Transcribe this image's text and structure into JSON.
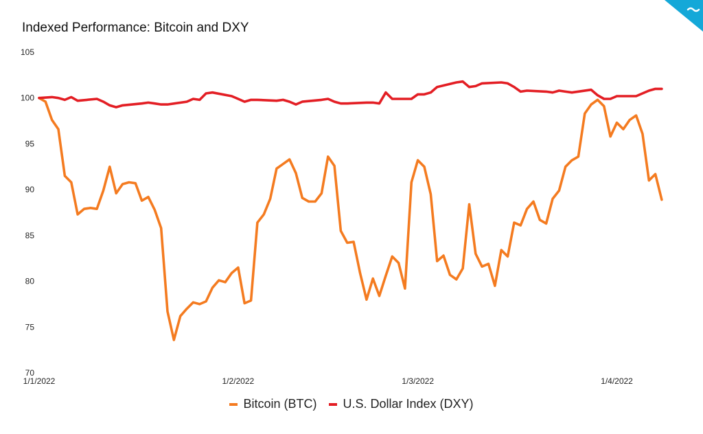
{
  "chart_data": {
    "type": "line",
    "title": "Indexed Performance: Bitcoin and DXY",
    "xlabel": "",
    "ylabel": "",
    "ylim": [
      70,
      105
    ],
    "yticks": [
      70,
      75,
      80,
      85,
      90,
      95,
      100,
      105
    ],
    "xlim": [
      "2022-01-01",
      "2022-04-11"
    ],
    "xticks": [
      {
        "date": "2022-01-01",
        "label": "1/1/2022"
      },
      {
        "date": "2022-02-01",
        "label": "1/2/2022"
      },
      {
        "date": "2022-03-01",
        "label": "1/3/2022"
      },
      {
        "date": "2022-04-01",
        "label": "1/4/2022"
      }
    ],
    "grid": false,
    "legend_position": "bottom",
    "series": [
      {
        "name": "Bitcoin (BTC)",
        "color": "#f47b20",
        "points": [
          [
            "2022-01-01",
            100.0
          ],
          [
            "2022-01-02",
            99.6
          ],
          [
            "2022-01-03",
            97.6
          ],
          [
            "2022-01-04",
            96.6
          ],
          [
            "2022-01-05",
            91.5
          ],
          [
            "2022-01-06",
            90.8
          ],
          [
            "2022-01-07",
            87.3
          ],
          [
            "2022-01-08",
            87.9
          ],
          [
            "2022-01-09",
            88.0
          ],
          [
            "2022-01-10",
            87.9
          ],
          [
            "2022-01-11",
            89.9
          ],
          [
            "2022-01-12",
            92.5
          ],
          [
            "2022-01-13",
            89.6
          ],
          [
            "2022-01-14",
            90.6
          ],
          [
            "2022-01-15",
            90.8
          ],
          [
            "2022-01-16",
            90.7
          ],
          [
            "2022-01-17",
            88.8
          ],
          [
            "2022-01-18",
            89.2
          ],
          [
            "2022-01-19",
            87.8
          ],
          [
            "2022-01-20",
            85.8
          ],
          [
            "2022-01-21",
            76.7
          ],
          [
            "2022-01-22",
            73.6
          ],
          [
            "2022-01-23",
            76.2
          ],
          [
            "2022-01-24",
            77.0
          ],
          [
            "2022-01-25",
            77.7
          ],
          [
            "2022-01-26",
            77.5
          ],
          [
            "2022-01-27",
            77.8
          ],
          [
            "2022-01-28",
            79.3
          ],
          [
            "2022-01-29",
            80.1
          ],
          [
            "2022-01-30",
            79.9
          ],
          [
            "2022-01-31",
            80.9
          ],
          [
            "2022-02-01",
            81.5
          ],
          [
            "2022-02-02",
            77.6
          ],
          [
            "2022-02-03",
            77.9
          ],
          [
            "2022-02-04",
            86.4
          ],
          [
            "2022-02-05",
            87.3
          ],
          [
            "2022-02-06",
            89.0
          ],
          [
            "2022-02-07",
            92.3
          ],
          [
            "2022-02-08",
            92.8
          ],
          [
            "2022-02-09",
            93.3
          ],
          [
            "2022-02-10",
            91.8
          ],
          [
            "2022-02-11",
            89.1
          ],
          [
            "2022-02-12",
            88.7
          ],
          [
            "2022-02-13",
            88.7
          ],
          [
            "2022-02-14",
            89.6
          ],
          [
            "2022-02-15",
            93.6
          ],
          [
            "2022-02-16",
            92.6
          ],
          [
            "2022-02-17",
            85.5
          ],
          [
            "2022-02-18",
            84.2
          ],
          [
            "2022-02-19",
            84.3
          ],
          [
            "2022-02-20",
            80.9
          ],
          [
            "2022-02-21",
            78.0
          ],
          [
            "2022-02-22",
            80.3
          ],
          [
            "2022-02-23",
            78.4
          ],
          [
            "2022-02-24",
            80.6
          ],
          [
            "2022-02-25",
            82.7
          ],
          [
            "2022-02-26",
            82.0
          ],
          [
            "2022-02-27",
            79.2
          ],
          [
            "2022-02-28",
            90.8
          ],
          [
            "2022-03-01",
            93.2
          ],
          [
            "2022-03-02",
            92.5
          ],
          [
            "2022-03-03",
            89.5
          ],
          [
            "2022-03-04",
            82.2
          ],
          [
            "2022-03-05",
            82.8
          ],
          [
            "2022-03-06",
            80.7
          ],
          [
            "2022-03-07",
            80.2
          ],
          [
            "2022-03-08",
            81.4
          ],
          [
            "2022-03-09",
            88.4
          ],
          [
            "2022-03-10",
            83.0
          ],
          [
            "2022-03-11",
            81.6
          ],
          [
            "2022-03-12",
            81.9
          ],
          [
            "2022-03-13",
            79.5
          ],
          [
            "2022-03-14",
            83.4
          ],
          [
            "2022-03-15",
            82.7
          ],
          [
            "2022-03-16",
            86.4
          ],
          [
            "2022-03-17",
            86.1
          ],
          [
            "2022-03-18",
            87.9
          ],
          [
            "2022-03-19",
            88.7
          ],
          [
            "2022-03-20",
            86.7
          ],
          [
            "2022-03-21",
            86.3
          ],
          [
            "2022-03-22",
            89.0
          ],
          [
            "2022-03-23",
            89.9
          ],
          [
            "2022-03-24",
            92.5
          ],
          [
            "2022-03-25",
            93.2
          ],
          [
            "2022-03-26",
            93.6
          ],
          [
            "2022-03-27",
            98.3
          ],
          [
            "2022-03-28",
            99.3
          ],
          [
            "2022-03-29",
            99.8
          ],
          [
            "2022-03-30",
            99.1
          ],
          [
            "2022-03-31",
            95.8
          ],
          [
            "2022-04-01",
            97.3
          ],
          [
            "2022-04-02",
            96.6
          ],
          [
            "2022-04-03",
            97.6
          ],
          [
            "2022-04-04",
            98.1
          ],
          [
            "2022-04-05",
            96.1
          ],
          [
            "2022-04-06",
            91.0
          ],
          [
            "2022-04-07",
            91.7
          ],
          [
            "2022-04-08",
            88.9
          ]
        ]
      },
      {
        "name": "U.S. Dollar Index (DXY)",
        "color": "#e31e24",
        "points": [
          [
            "2022-01-01",
            100.0
          ],
          [
            "2022-01-03",
            100.1
          ],
          [
            "2022-01-04",
            100.0
          ],
          [
            "2022-01-05",
            99.8
          ],
          [
            "2022-01-06",
            100.1
          ],
          [
            "2022-01-07",
            99.7
          ],
          [
            "2022-01-10",
            99.9
          ],
          [
            "2022-01-11",
            99.6
          ],
          [
            "2022-01-12",
            99.2
          ],
          [
            "2022-01-13",
            99.0
          ],
          [
            "2022-01-14",
            99.2
          ],
          [
            "2022-01-17",
            99.4
          ],
          [
            "2022-01-18",
            99.5
          ],
          [
            "2022-01-19",
            99.4
          ],
          [
            "2022-01-20",
            99.3
          ],
          [
            "2022-01-21",
            99.3
          ],
          [
            "2022-01-24",
            99.6
          ],
          [
            "2022-01-25",
            99.9
          ],
          [
            "2022-01-26",
            99.8
          ],
          [
            "2022-01-27",
            100.5
          ],
          [
            "2022-01-28",
            100.6
          ],
          [
            "2022-01-31",
            100.2
          ],
          [
            "2022-02-01",
            99.9
          ],
          [
            "2022-02-02",
            99.6
          ],
          [
            "2022-02-03",
            99.8
          ],
          [
            "2022-02-04",
            99.8
          ],
          [
            "2022-02-07",
            99.7
          ],
          [
            "2022-02-08",
            99.8
          ],
          [
            "2022-02-09",
            99.6
          ],
          [
            "2022-02-10",
            99.3
          ],
          [
            "2022-02-11",
            99.6
          ],
          [
            "2022-02-14",
            99.8
          ],
          [
            "2022-02-15",
            99.9
          ],
          [
            "2022-02-16",
            99.6
          ],
          [
            "2022-02-17",
            99.4
          ],
          [
            "2022-02-18",
            99.4
          ],
          [
            "2022-02-21",
            99.5
          ],
          [
            "2022-02-22",
            99.5
          ],
          [
            "2022-02-23",
            99.4
          ],
          [
            "2022-02-24",
            100.6
          ],
          [
            "2022-02-25",
            99.9
          ],
          [
            "2022-02-28",
            99.9
          ],
          [
            "2022-03-01",
            100.4
          ],
          [
            "2022-03-02",
            100.4
          ],
          [
            "2022-03-03",
            100.6
          ],
          [
            "2022-03-04",
            101.2
          ],
          [
            "2022-03-07",
            101.7
          ],
          [
            "2022-03-08",
            101.8
          ],
          [
            "2022-03-09",
            101.2
          ],
          [
            "2022-03-10",
            101.3
          ],
          [
            "2022-03-11",
            101.6
          ],
          [
            "2022-03-14",
            101.7
          ],
          [
            "2022-03-15",
            101.6
          ],
          [
            "2022-03-16",
            101.2
          ],
          [
            "2022-03-17",
            100.7
          ],
          [
            "2022-03-18",
            100.8
          ],
          [
            "2022-03-21",
            100.7
          ],
          [
            "2022-03-22",
            100.6
          ],
          [
            "2022-03-23",
            100.8
          ],
          [
            "2022-03-24",
            100.7
          ],
          [
            "2022-03-25",
            100.6
          ],
          [
            "2022-03-28",
            100.9
          ],
          [
            "2022-03-29",
            100.3
          ],
          [
            "2022-03-30",
            99.9
          ],
          [
            "2022-03-31",
            99.9
          ],
          [
            "2022-04-01",
            100.2
          ],
          [
            "2022-04-04",
            100.2
          ],
          [
            "2022-04-05",
            100.5
          ],
          [
            "2022-04-06",
            100.8
          ],
          [
            "2022-04-07",
            101.0
          ],
          [
            "2022-04-08",
            101.0
          ]
        ]
      }
    ]
  }
}
